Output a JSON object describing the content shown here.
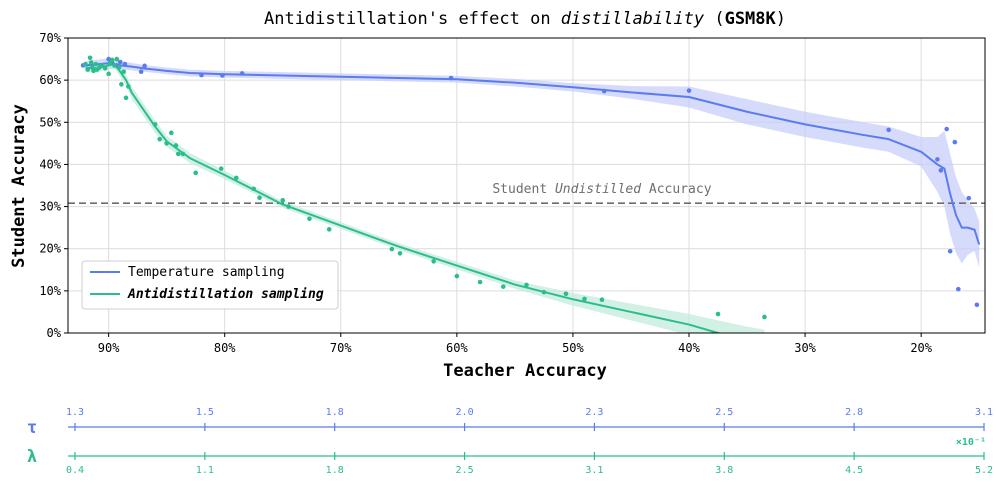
{
  "chart_data": {
    "type": "line",
    "title_prefix": "Antidistillation's effect on ",
    "title_italic": "distillability",
    "title_open": " (",
    "title_bold": "GSM8K",
    "title_close": ")",
    "xlabel": "Teacher Accuracy",
    "ylabel": "Student Accuracy",
    "xlim": [
      93.5,
      14.5
    ],
    "ylim": [
      0,
      70
    ],
    "x_ticks": [
      90,
      80,
      70,
      60,
      50,
      40,
      30,
      20
    ],
    "x_tick_labels": [
      "90%",
      "80%",
      "70%",
      "60%",
      "50%",
      "40%",
      "30%",
      "20%"
    ],
    "y_ticks": [
      0,
      10,
      20,
      30,
      40,
      50,
      60,
      70
    ],
    "y_tick_labels": [
      "0%",
      "10%",
      "20%",
      "30%",
      "40%",
      "50%",
      "60%",
      "70%"
    ],
    "grid": true,
    "legend_position": "lower-left",
    "reference_line": {
      "y": 30.8,
      "label_prefix": "Student ",
      "label_italic": "Undistilled",
      "label_suffix": " Accuracy",
      "color": "#707070"
    },
    "series": [
      {
        "name": "Temperature sampling",
        "color": "#5b7bf0",
        "band_color": "#c5ccfa",
        "fit_x": [
          92,
          90,
          89,
          88,
          87,
          85,
          83,
          80,
          75,
          70,
          65,
          60,
          55,
          50,
          45,
          40,
          35,
          30,
          25,
          22.8,
          20,
          18.6,
          18.0,
          17.5,
          17.0,
          16.5,
          16.0,
          15.4,
          15.0
        ],
        "fit_y": [
          63.5,
          64,
          63.5,
          63.2,
          62.8,
          62.2,
          61.7,
          61.4,
          61.1,
          60.8,
          60.5,
          60.2,
          59.4,
          58.3,
          57.1,
          56.0,
          52.5,
          49.5,
          47.0,
          46.0,
          43.0,
          40.0,
          39.0,
          33.0,
          28.0,
          25.0,
          25.0,
          24.5,
          21.0
        ],
        "band_half": [
          1.0,
          1.2,
          1.0,
          0.9,
          0.8,
          0.8,
          0.8,
          0.8,
          0.8,
          0.8,
          0.8,
          0.8,
          0.9,
          1.0,
          1.5,
          2.5,
          3.0,
          3.0,
          3.0,
          3.0,
          3.5,
          6.5,
          9.0,
          9.5,
          9.0,
          8.5,
          6.5,
          5.0,
          5.5
        ],
        "points_x": [
          92.2,
          90.0,
          89.7,
          89.3,
          89.0,
          88.6,
          87.2,
          86.9,
          82.0,
          80.2,
          78.5,
          60.5,
          47.3,
          40.0,
          22.8,
          18.6,
          18.3,
          17.8,
          17.5,
          17.1,
          16.8,
          15.9,
          15.2
        ],
        "points_y": [
          63.5,
          65,
          64.2,
          63.5,
          64.3,
          63.8,
          62.0,
          63.4,
          61.2,
          61.1,
          61.6,
          60.5,
          57.4,
          57.5,
          48.2,
          41.2,
          38.6,
          48.4,
          19.4,
          45.3,
          10.4,
          32.0,
          6.7
        ]
      },
      {
        "name": "Antidistillation sampling",
        "color": "#2bbd8e",
        "band_color": "#bfebd9",
        "fit_x": [
          92,
          91,
          90,
          89.5,
          89,
          88.5,
          88,
          87,
          86,
          85,
          83,
          80,
          75,
          70,
          65,
          60,
          55,
          50,
          45,
          40,
          37.5,
          35,
          33.5
        ],
        "fit_y": [
          63,
          62.8,
          63.5,
          63.8,
          62,
          60,
          57,
          53,
          49,
          45.5,
          41.5,
          37.5,
          30.5,
          25.5,
          20.5,
          16,
          11.5,
          8,
          5,
          2,
          0,
          -2,
          -3
        ],
        "band_half": [
          1.0,
          1.0,
          1.0,
          1.0,
          1.2,
          1.4,
          1.5,
          1.5,
          1.5,
          1.3,
          1.2,
          1.0,
          0.8,
          0.8,
          0.8,
          0.9,
          1.0,
          1.5,
          2.0,
          2.5,
          3.0,
          3.5,
          3.8
        ],
        "points_x": [
          92.0,
          91.8,
          91.6,
          91.5,
          91.4,
          91.3,
          91.1,
          91.0,
          90.8,
          90.6,
          90.3,
          90.0,
          89.9,
          89.7,
          89.5,
          89.3,
          89.1,
          88.9,
          88.7,
          88.5,
          88.3,
          86.0,
          85.6,
          85.0,
          84.6,
          84.2,
          84.0,
          83.6,
          82.5,
          80.3,
          79.0,
          77.5,
          77.0,
          75.0,
          74.5,
          72.7,
          71.0,
          65.6,
          64.9,
          62.0,
          60.0,
          58.0,
          56.0,
          54.0,
          52.5,
          50.6,
          49.0,
          47.5,
          37.5,
          33.5
        ],
        "points_y": [
          63.8,
          62.5,
          65.3,
          64.2,
          63.0,
          62.2,
          63.8,
          62.5,
          63.0,
          63.5,
          62.8,
          61.5,
          64.0,
          64.8,
          63.5,
          65.0,
          63.0,
          59.0,
          62.0,
          55.8,
          58.5,
          49.5,
          46.0,
          45.0,
          47.5,
          44.5,
          42.5,
          42.5,
          38.0,
          39.0,
          36.8,
          34.2,
          32.1,
          31.5,
          30.0,
          27.1,
          24.6,
          19.9,
          18.9,
          17.0,
          13.5,
          12.1,
          11.0,
          11.4,
          9.7,
          9.3,
          8.1,
          7.9,
          4.5,
          3.8
        ]
      }
    ],
    "parameter_scales": [
      {
        "symbol": "τ",
        "color": "#5b7bf0",
        "ticks": [
          "1.3",
          "1.5",
          "1.8",
          "2.0",
          "2.3",
          "2.5",
          "2.8",
          "3.1"
        ]
      },
      {
        "symbol": "λ",
        "color": "#2bbd8e",
        "multiplier": "×10⁻¹",
        "ticks": [
          "0.4",
          "1.1",
          "1.8",
          "2.5",
          "3.1",
          "3.8",
          "4.5",
          "5.2"
        ]
      }
    ]
  }
}
